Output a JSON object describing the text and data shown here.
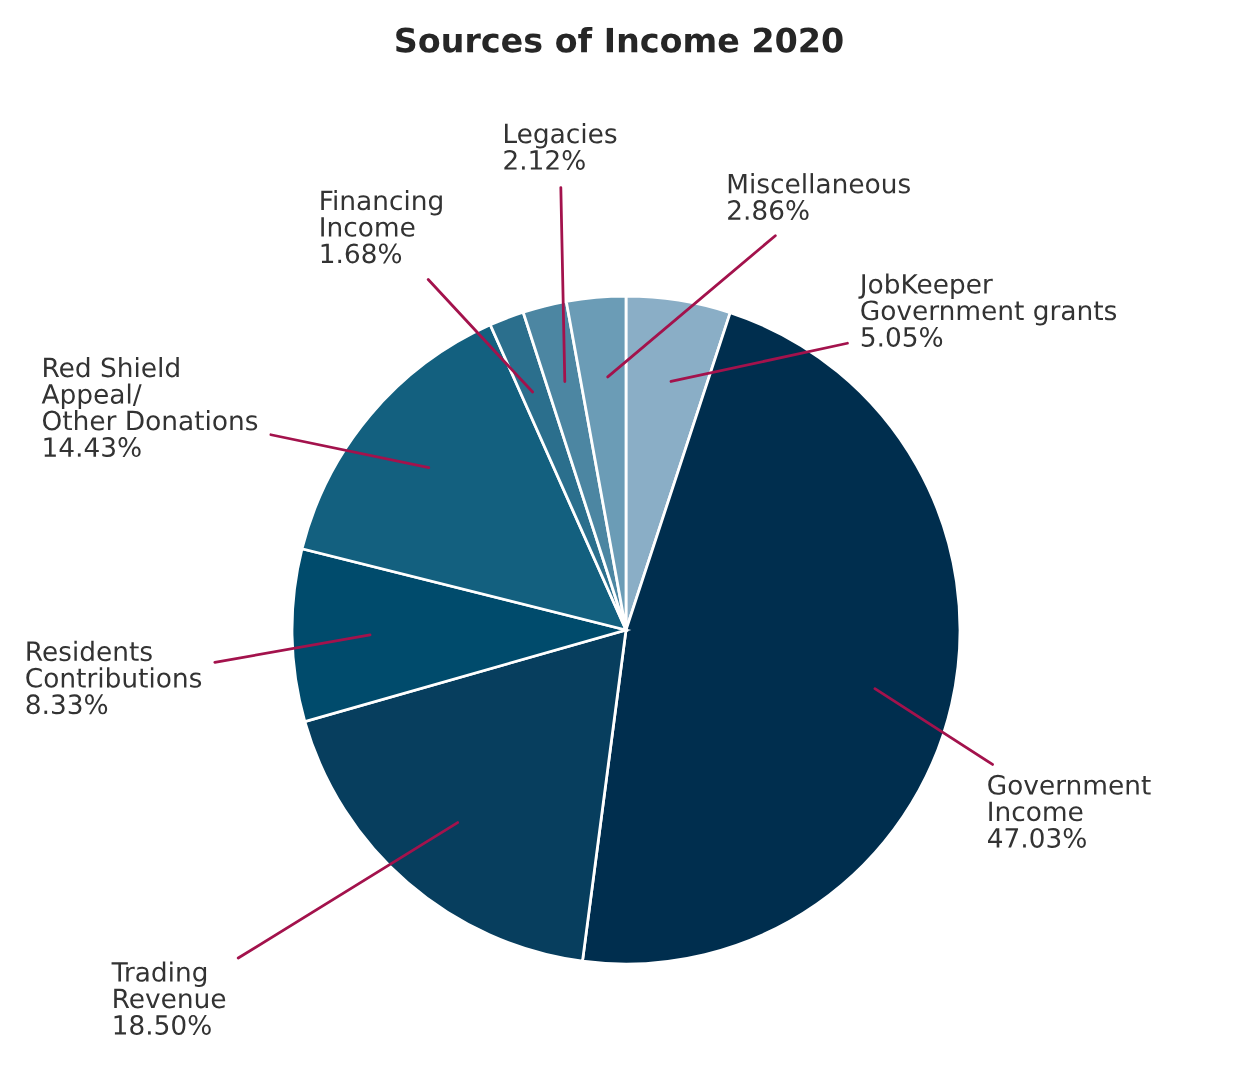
{
  "chart_data": {
    "type": "pie",
    "title": "Sources of Income 2020",
    "categories": [
      "JobKeeper\nGovernment grants",
      "Government\nIncome",
      "Trading\nRevenue",
      "Residents\nContributions",
      "Red Shield\nAppeal/\nOther Donations",
      "Financing\nIncome",
      "Legacies",
      "Miscellaneous"
    ],
    "values": [
      5.05,
      47.03,
      18.5,
      8.33,
      14.43,
      1.68,
      2.12,
      2.86
    ],
    "value_labels": [
      "5.05%",
      "47.03%",
      "18.50%",
      "8.33%",
      "14.43%",
      "1.68%",
      "2.12%",
      "2.86%"
    ],
    "colors": [
      "#8aaec6",
      "#002e4e",
      "#073e5e",
      "#004b6c",
      "#13607f",
      "#2b6f8d",
      "#4c86a2",
      "#6b9cb6"
    ],
    "legend": false
  }
}
